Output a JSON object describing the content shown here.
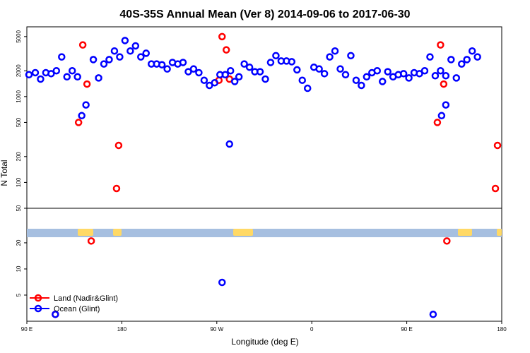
{
  "chart_data": {
    "type": "scatter",
    "title": "40S-35S Annual Mean (Ver 8)   2014-09-06 to 2017-06-30",
    "xlabel": "Longitude (deg E)",
    "ylabel": "N Total",
    "x_ticks": [
      {
        "value": 90,
        "label": "90 E"
      },
      {
        "value": 180,
        "label": "180"
      },
      {
        "value": 270,
        "label": "90 W"
      },
      {
        "value": 360,
        "label": "0"
      },
      {
        "value": 450,
        "label": "90 E"
      },
      {
        "value": 540,
        "label": "180"
      }
    ],
    "xlim": [
      90,
      540
    ],
    "y_scale": "log",
    "y_ticks_upper": [
      "5000",
      "2000",
      "1000",
      "500",
      "200",
      "100",
      "50"
    ],
    "y_ticks_lower": [
      "20",
      "10",
      "5"
    ],
    "ylim_upper": [
      50,
      6500
    ],
    "ylim_lower": [
      2.5,
      50
    ],
    "colors": {
      "land": "#ff0000",
      "ocean": "#0000ff",
      "strip": "#a6bfe0",
      "land_fill": "#ffd966"
    },
    "series": [
      {
        "name": "Land (Nadir&Glint)",
        "values": [
          {
            "x": 139,
            "y": 500
          },
          {
            "x": 143,
            "y": 4000
          },
          {
            "x": 147,
            "y": 1400
          },
          {
            "x": 151,
            "y": 21
          },
          {
            "x": 175,
            "y": 85
          },
          {
            "x": 177,
            "y": 270
          },
          {
            "x": 272,
            "y": 1550
          },
          {
            "x": 275,
            "y": 5000
          },
          {
            "x": 279,
            "y": 3500
          },
          {
            "x": 282,
            "y": 1600
          },
          {
            "x": 479,
            "y": 500
          },
          {
            "x": 482,
            "y": 4000
          },
          {
            "x": 485,
            "y": 1400
          },
          {
            "x": 488,
            "y": 21
          },
          {
            "x": 534,
            "y": 85
          },
          {
            "x": 536,
            "y": 270
          },
          {
            "x": 117,
            "y": 3
          }
        ]
      },
      {
        "name": "Ocean (Glint)",
        "values": [
          {
            "x": 92,
            "y": 1800
          },
          {
            "x": 98,
            "y": 1900
          },
          {
            "x": 103,
            "y": 1600
          },
          {
            "x": 108,
            "y": 1900
          },
          {
            "x": 113,
            "y": 1850
          },
          {
            "x": 118,
            "y": 2000
          },
          {
            "x": 123,
            "y": 2900
          },
          {
            "x": 128,
            "y": 1700
          },
          {
            "x": 133,
            "y": 2000
          },
          {
            "x": 138,
            "y": 1700
          },
          {
            "x": 142,
            "y": 600
          },
          {
            "x": 146,
            "y": 800
          },
          {
            "x": 153,
            "y": 2700
          },
          {
            "x": 158,
            "y": 1650
          },
          {
            "x": 163,
            "y": 2400
          },
          {
            "x": 168,
            "y": 2700
          },
          {
            "x": 173,
            "y": 3400
          },
          {
            "x": 178,
            "y": 2900
          },
          {
            "x": 183,
            "y": 4500
          },
          {
            "x": 188,
            "y": 3400
          },
          {
            "x": 193,
            "y": 3900
          },
          {
            "x": 198,
            "y": 2900
          },
          {
            "x": 203,
            "y": 3200
          },
          {
            "x": 208,
            "y": 2400
          },
          {
            "x": 213,
            "y": 2400
          },
          {
            "x": 218,
            "y": 2350
          },
          {
            "x": 223,
            "y": 2100
          },
          {
            "x": 228,
            "y": 2500
          },
          {
            "x": 233,
            "y": 2400
          },
          {
            "x": 238,
            "y": 2500
          },
          {
            "x": 243,
            "y": 1950
          },
          {
            "x": 248,
            "y": 2100
          },
          {
            "x": 253,
            "y": 1900
          },
          {
            "x": 258,
            "y": 1550
          },
          {
            "x": 263,
            "y": 1350
          },
          {
            "x": 268,
            "y": 1450
          },
          {
            "x": 273,
            "y": 1800
          },
          {
            "x": 278,
            "y": 1800
          },
          {
            "x": 283,
            "y": 2000
          },
          {
            "x": 287,
            "y": 1500
          },
          {
            "x": 291,
            "y": 1700
          },
          {
            "x": 275,
            "y": 7
          },
          {
            "x": 282,
            "y": 280
          },
          {
            "x": 296,
            "y": 2400
          },
          {
            "x": 301,
            "y": 2200
          },
          {
            "x": 306,
            "y": 1950
          },
          {
            "x": 311,
            "y": 1950
          },
          {
            "x": 316,
            "y": 1600
          },
          {
            "x": 321,
            "y": 2500
          },
          {
            "x": 326,
            "y": 3000
          },
          {
            "x": 331,
            "y": 2600
          },
          {
            "x": 336,
            "y": 2600
          },
          {
            "x": 341,
            "y": 2550
          },
          {
            "x": 346,
            "y": 2050
          },
          {
            "x": 351,
            "y": 1550
          },
          {
            "x": 356,
            "y": 1250
          },
          {
            "x": 362,
            "y": 2200
          },
          {
            "x": 367,
            "y": 2100
          },
          {
            "x": 372,
            "y": 1850
          },
          {
            "x": 377,
            "y": 2900
          },
          {
            "x": 382,
            "y": 3400
          },
          {
            "x": 387,
            "y": 2100
          },
          {
            "x": 392,
            "y": 1800
          },
          {
            "x": 397,
            "y": 3000
          },
          {
            "x": 402,
            "y": 1550
          },
          {
            "x": 407,
            "y": 1350
          },
          {
            "x": 412,
            "y": 1700
          },
          {
            "x": 417,
            "y": 1900
          },
          {
            "x": 422,
            "y": 2000
          },
          {
            "x": 427,
            "y": 1500
          },
          {
            "x": 432,
            "y": 1950
          },
          {
            "x": 437,
            "y": 1700
          },
          {
            "x": 442,
            "y": 1800
          },
          {
            "x": 447,
            "y": 1850
          },
          {
            "x": 452,
            "y": 1650
          },
          {
            "x": 457,
            "y": 1900
          },
          {
            "x": 462,
            "y": 1850
          },
          {
            "x": 467,
            "y": 2000
          },
          {
            "x": 472,
            "y": 2900
          },
          {
            "x": 477,
            "y": 1750
          },
          {
            "x": 482,
            "y": 2000
          },
          {
            "x": 487,
            "y": 1750
          },
          {
            "x": 483,
            "y": 600
          },
          {
            "x": 487,
            "y": 800
          },
          {
            "x": 492,
            "y": 2700
          },
          {
            "x": 497,
            "y": 1650
          },
          {
            "x": 502,
            "y": 2400
          },
          {
            "x": 507,
            "y": 2700
          },
          {
            "x": 512,
            "y": 3400
          },
          {
            "x": 517,
            "y": 2900
          },
          {
            "x": 117,
            "y": 3
          },
          {
            "x": 475,
            "y": 3
          }
        ]
      }
    ],
    "legend": {
      "position": "bottom-left"
    }
  }
}
